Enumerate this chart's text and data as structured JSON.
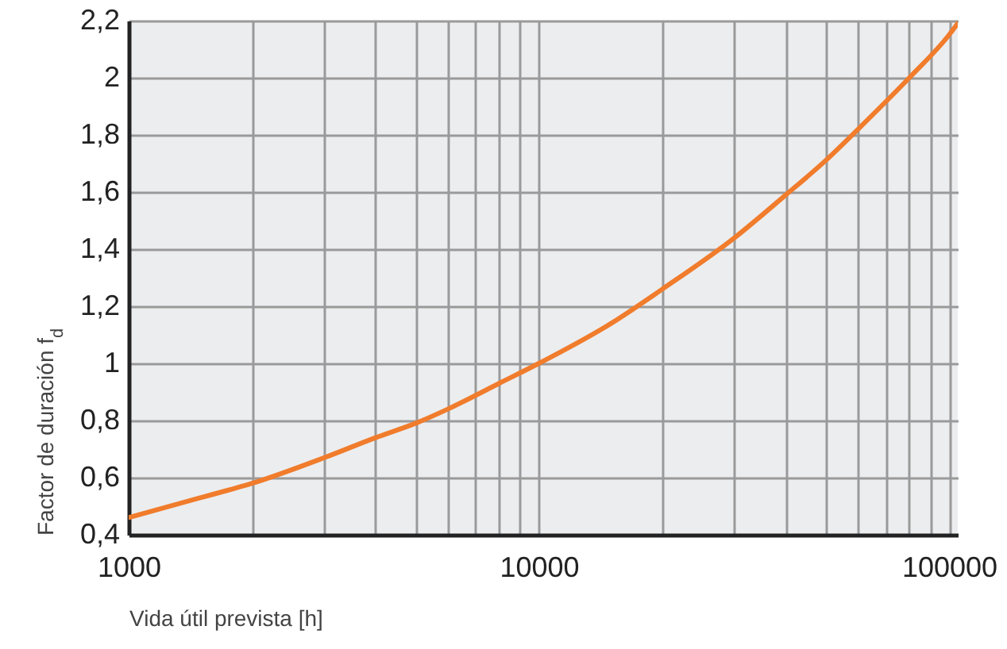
{
  "chart_data": {
    "type": "line",
    "xlabel": "Vida útil prevista [h]",
    "ylabel": "Factor de duración f$_{d}$",
    "x": [
      1000,
      1500,
      2000,
      3000,
      4000,
      5000,
      6000,
      8000,
      10000,
      15000,
      20000,
      30000,
      40000,
      50000,
      60000,
      80000,
      100000,
      105000
    ],
    "series": [
      {
        "color": "#f07c2c",
        "values": [
          0.46,
          0.53,
          0.58,
          0.67,
          0.74,
          0.79,
          0.84,
          0.93,
          1.0,
          1.14,
          1.26,
          1.44,
          1.59,
          1.71,
          1.82,
          2.0,
          2.15,
          2.19
        ]
      }
    ],
    "log": "x",
    "xlim": [
      1000,
      105000
    ],
    "ylim": [
      0.4,
      2.2
    ],
    "xticks": [
      1000,
      {
        "value": 2000,
        "label": null
      },
      {
        "value": 3000,
        "label": null
      },
      {
        "value": 4000,
        "label": null
      },
      {
        "value": 5000,
        "label": null
      },
      {
        "value": 6000,
        "label": null
      },
      {
        "value": 7000,
        "label": null
      },
      {
        "value": 8000,
        "label": null
      },
      {
        "value": 9000,
        "label": null
      },
      10000,
      {
        "value": 20000,
        "label": null
      },
      {
        "value": 30000,
        "label": null
      },
      {
        "value": 40000,
        "label": null
      },
      {
        "value": 50000,
        "label": null
      },
      {
        "value": 60000,
        "label": null
      },
      {
        "value": 70000,
        "label": null
      },
      {
        "value": 80000,
        "label": null
      },
      {
        "value": 90000,
        "label": null
      },
      100000
    ],
    "yticks": [
      {
        "value": 0.4,
        "label": "0,4"
      },
      {
        "value": 0.6,
        "label": "0,6"
      },
      {
        "value": 0.8,
        "label": "0,8"
      },
      {
        "value": 1,
        "label": "1"
      },
      {
        "value": 1.2,
        "label": "1,2"
      },
      {
        "value": 1.4,
        "label": "1,4"
      },
      {
        "value": 1.6,
        "label": "1,6"
      },
      {
        "value": 1.8,
        "label": "1,8"
      },
      {
        "value": 2,
        "label": "2"
      },
      {
        "value": 2.2,
        "label": "2,2"
      }
    ],
    "grid": true,
    "line_style": "solid",
    "marker": "none"
  }
}
